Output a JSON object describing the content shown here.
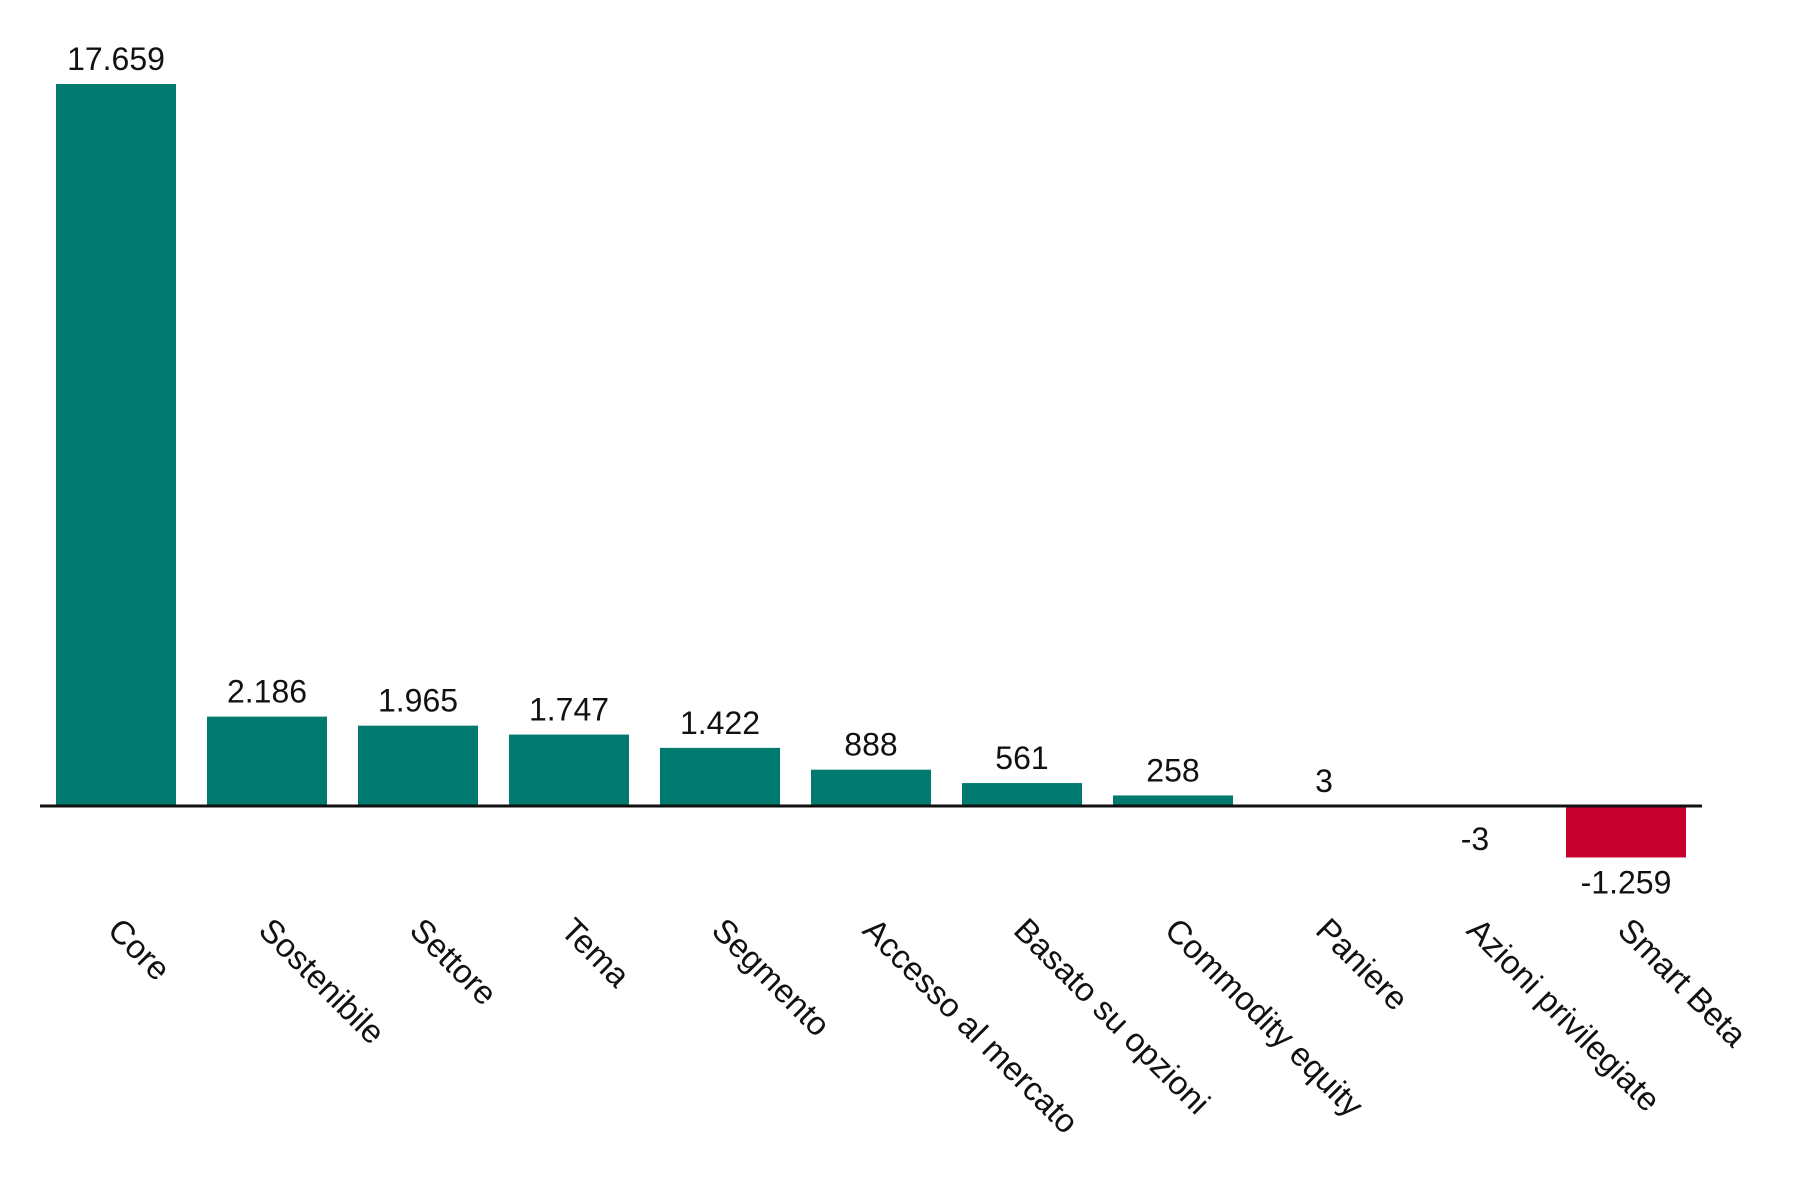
{
  "chart_data": {
    "type": "bar",
    "title": "",
    "xlabel": "",
    "ylabel": "",
    "grid": false,
    "categories": [
      "Core",
      "Sostenibile",
      "Settore",
      "Tema",
      "Segmento",
      "Accesso al mercato",
      "Basato su opzioni",
      "Commodity equity",
      "Paniere",
      "Azioni privilegiate",
      "Smart Beta"
    ],
    "values": [
      17659,
      2186,
      1965,
      1747,
      1422,
      888,
      561,
      258,
      3,
      -3,
      -1259
    ],
    "value_labels": [
      "17.659",
      "2.186",
      "1.965",
      "1.747",
      "1.422",
      "888",
      "561",
      "258",
      "3",
      "-3",
      "-1.259"
    ],
    "ylim": [
      -1259,
      17659
    ],
    "colors": {
      "positive": "#00796f",
      "negative": "#c8002f",
      "baseline": "#111111",
      "text": "#111111"
    }
  }
}
